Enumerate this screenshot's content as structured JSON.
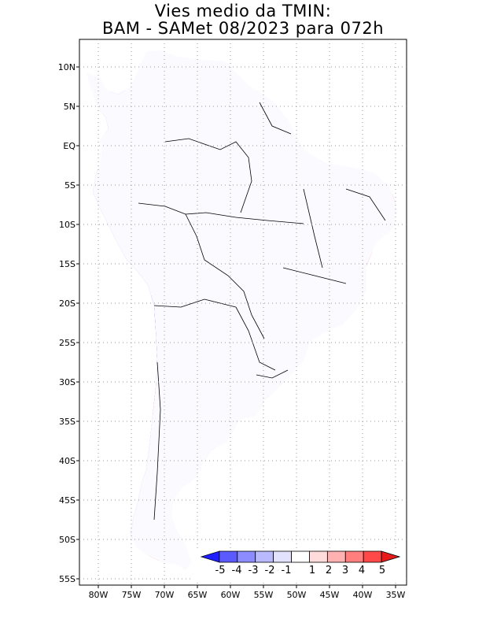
{
  "title": {
    "line1": "Vies medio da TMIN:",
    "line2": "BAM - SAMet 08/2023  para 072h"
  },
  "map": {
    "lat_labels": [
      "10N",
      "5N",
      "EQ",
      "5S",
      "10S",
      "15S",
      "20S",
      "25S",
      "30S",
      "35S",
      "40S",
      "45S",
      "50S",
      "55S"
    ],
    "lon_labels": [
      "80W",
      "75W",
      "70W",
      "65W",
      "60W",
      "55W",
      "50W",
      "45W",
      "40W",
      "35W"
    ],
    "grid": "dotted"
  },
  "colorbar": {
    "labels": [
      "-5",
      "-4",
      "-3",
      "-2",
      "-1",
      "1",
      "2",
      "3",
      "4",
      "5"
    ],
    "colors": [
      "#1f1fff",
      "#5a5aff",
      "#8c8cff",
      "#b9b9ff",
      "#e2e2ff",
      "#ffffff",
      "#ffdcdc",
      "#ffb1b1",
      "#ff7e7e",
      "#ff4848",
      "#e61a1a"
    ]
  }
}
